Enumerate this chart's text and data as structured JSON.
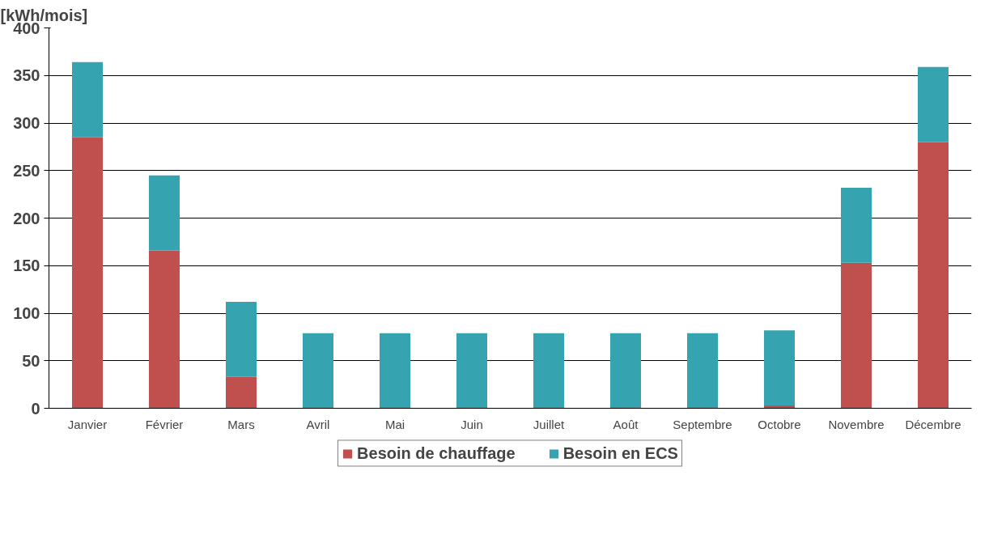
{
  "chart_data": {
    "type": "bar",
    "stacked": true,
    "ylabel": "[kWh/mois]",
    "categories": [
      "Janvier",
      "Février",
      "Mars",
      "Avril",
      "Mai",
      "Juin",
      "Juillet",
      "Août",
      "Septembre",
      "Octobre",
      "Novembre",
      "Décembre"
    ],
    "series": [
      {
        "name": "Besoin de chauffage",
        "color": "#c0504d",
        "values": [
          285,
          166,
          33,
          0,
          0,
          0,
          0,
          0,
          0,
          3,
          153,
          280
        ]
      },
      {
        "name": "Besoin en ECS",
        "color": "#36a4b0",
        "values": [
          79,
          79,
          79,
          79,
          79,
          79,
          79,
          79,
          79,
          79,
          79,
          79
        ]
      }
    ],
    "ylim": [
      0,
      400
    ],
    "yticks": [
      0,
      50,
      100,
      150,
      200,
      250,
      300,
      350,
      400
    ],
    "grid": "y",
    "legend": "bottom"
  }
}
